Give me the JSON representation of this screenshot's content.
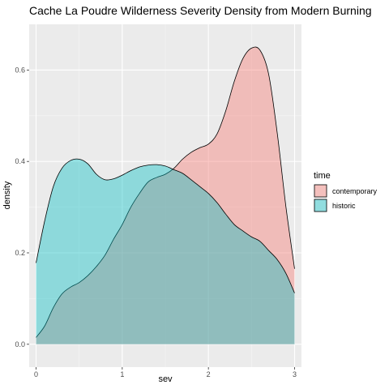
{
  "chart_data": {
    "type": "area",
    "title": "Cache La Poudre Wilderness Severity Density from Modern Burning",
    "xlabel": "sev",
    "ylabel": "density",
    "xlim": [
      -0.08,
      3.08
    ],
    "ylim": [
      -0.05,
      0.7
    ],
    "x_ticks": [
      "0",
      "1",
      "2",
      "3"
    ],
    "y_ticks": [
      "0.0",
      "0.2",
      "0.4",
      "0.6"
    ],
    "grid": true,
    "legend": {
      "title": "time",
      "placement": "right"
    },
    "series": [
      {
        "name": "contemporary",
        "fill": "#F8766D",
        "points": [
          [
            0,
            0.015
          ],
          [
            0.1,
            0.04
          ],
          [
            0.2,
            0.08
          ],
          [
            0.3,
            0.11
          ],
          [
            0.4,
            0.125
          ],
          [
            0.5,
            0.135
          ],
          [
            0.6,
            0.15
          ],
          [
            0.7,
            0.17
          ],
          [
            0.8,
            0.195
          ],
          [
            0.9,
            0.23
          ],
          [
            1.0,
            0.262
          ],
          [
            1.1,
            0.3
          ],
          [
            1.2,
            0.33
          ],
          [
            1.3,
            0.355
          ],
          [
            1.4,
            0.365
          ],
          [
            1.5,
            0.372
          ],
          [
            1.6,
            0.385
          ],
          [
            1.7,
            0.405
          ],
          [
            1.8,
            0.42
          ],
          [
            1.9,
            0.43
          ],
          [
            2.0,
            0.438
          ],
          [
            2.1,
            0.46
          ],
          [
            2.2,
            0.51
          ],
          [
            2.3,
            0.575
          ],
          [
            2.4,
            0.625
          ],
          [
            2.5,
            0.648
          ],
          [
            2.6,
            0.643
          ],
          [
            2.7,
            0.59
          ],
          [
            2.8,
            0.46
          ],
          [
            2.9,
            0.3
          ],
          [
            3.0,
            0.165
          ]
        ]
      },
      {
        "name": "historic",
        "fill": "#00BFC4",
        "points": [
          [
            0,
            0.178
          ],
          [
            0.1,
            0.27
          ],
          [
            0.2,
            0.345
          ],
          [
            0.3,
            0.385
          ],
          [
            0.4,
            0.402
          ],
          [
            0.5,
            0.405
          ],
          [
            0.6,
            0.395
          ],
          [
            0.7,
            0.372
          ],
          [
            0.8,
            0.36
          ],
          [
            0.9,
            0.362
          ],
          [
            1.0,
            0.37
          ],
          [
            1.1,
            0.38
          ],
          [
            1.2,
            0.388
          ],
          [
            1.3,
            0.392
          ],
          [
            1.4,
            0.393
          ],
          [
            1.5,
            0.39
          ],
          [
            1.6,
            0.382
          ],
          [
            1.7,
            0.374
          ],
          [
            1.8,
            0.36
          ],
          [
            1.9,
            0.345
          ],
          [
            2.0,
            0.33
          ],
          [
            2.1,
            0.31
          ],
          [
            2.2,
            0.285
          ],
          [
            2.3,
            0.262
          ],
          [
            2.4,
            0.248
          ],
          [
            2.5,
            0.235
          ],
          [
            2.6,
            0.225
          ],
          [
            2.7,
            0.205
          ],
          [
            2.8,
            0.185
          ],
          [
            2.9,
            0.155
          ],
          [
            3.0,
            0.112
          ]
        ]
      }
    ]
  }
}
